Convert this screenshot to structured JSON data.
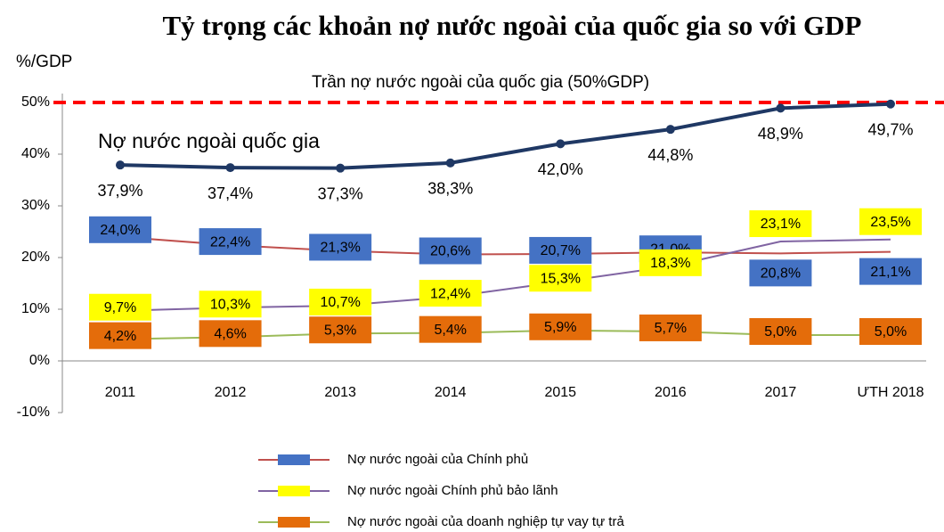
{
  "chart_data": {
    "type": "line",
    "title": "Tỷ trọng các khoản nợ nước ngoài của quốc gia so với GDP",
    "y_label": "%/GDP",
    "categories": [
      "2011",
      "2012",
      "2013",
      "2014",
      "2015",
      "2016",
      "2017",
      "ƯTH 2018"
    ],
    "ylim": [
      -10,
      50
    ],
    "yticks": [
      {
        "value": -10,
        "label": "-10%"
      },
      {
        "value": 0,
        "label": "0%"
      },
      {
        "value": 10,
        "label": "10%"
      },
      {
        "value": 20,
        "label": "20%"
      },
      {
        "value": 30,
        "label": "30%"
      },
      {
        "value": 40,
        "label": "40%"
      },
      {
        "value": 50,
        "label": "50%"
      }
    ],
    "ceiling": {
      "value": 50,
      "label": "Trần nợ nước ngoài của quốc gia (50%GDP)",
      "color": "#ff0000"
    },
    "annotation": "Nợ nước ngoài quốc gia",
    "national": {
      "color": "#1f3864",
      "values": [
        37.9,
        37.4,
        37.3,
        38.3,
        42.0,
        44.8,
        48.9,
        49.7
      ],
      "value_labels": [
        "37,9%",
        "37,4%",
        "37,3%",
        "38,3%",
        "42,0%",
        "44,8%",
        "48,9%",
        "49,7%"
      ]
    },
    "series": [
      {
        "name": "Nợ nước ngoài của Chính phủ",
        "color": "#c0504d",
        "box_color": "#4472c4",
        "text_color": "#ffffff",
        "values": [
          24.0,
          22.4,
          21.3,
          20.6,
          20.7,
          21.0,
          20.8,
          21.1
        ],
        "value_labels": [
          "24,0%",
          "22,4%",
          "21,3%",
          "20,6%",
          "20,7%",
          "21,0%",
          "20,8%",
          "21,1%"
        ]
      },
      {
        "name": "Nợ nước ngoài Chính phủ bảo lãnh",
        "color": "#8064a2",
        "box_color": "#ffff00",
        "text_color": "#000000",
        "values": [
          9.7,
          10.3,
          10.7,
          12.4,
          15.3,
          18.3,
          23.1,
          23.5
        ],
        "value_labels": [
          "9,7%",
          "10,3%",
          "10,7%",
          "12,4%",
          "15,3%",
          "18,3%",
          "23,1%",
          "23,5%"
        ]
      },
      {
        "name": "Nợ nước ngoài của doanh nghiệp tự vay tự trả",
        "color": "#9bbb59",
        "box_color": "#e46c0a",
        "text_color": "#000000",
        "values": [
          4.2,
          4.6,
          5.3,
          5.4,
          5.9,
          5.7,
          5.0,
          5.0
        ],
        "value_labels": [
          "4,2%",
          "4,6%",
          "5,3%",
          "5,4%",
          "5,9%",
          "5,7%",
          "5,0%",
          "5,0%"
        ]
      }
    ]
  }
}
